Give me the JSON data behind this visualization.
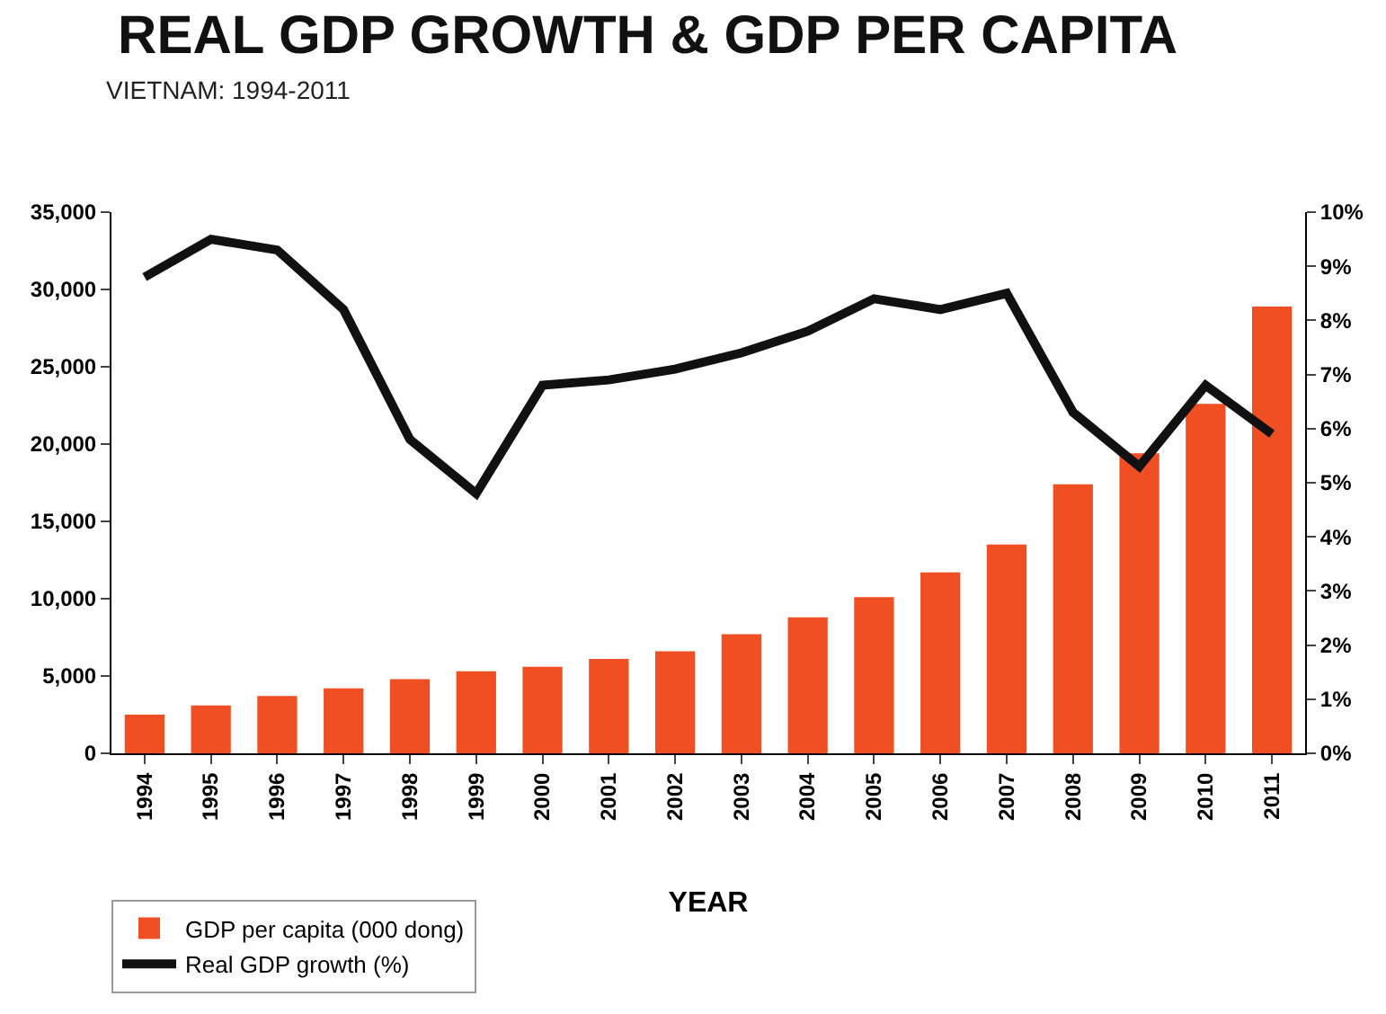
{
  "chart_data": {
    "type": "bar",
    "title": "REAL GDP GROWTH & GDP PER CAPITA",
    "subtitle": "VIETNAM: 1994-2011",
    "xlabel": "YEAR",
    "categories": [
      "1994",
      "1995",
      "1996",
      "1997",
      "1998",
      "1999",
      "2000",
      "2001",
      "2002",
      "2003",
      "2004",
      "2005",
      "2006",
      "2007",
      "2008",
      "2009",
      "2010",
      "2011"
    ],
    "series": [
      {
        "name": "GDP per capita (000 dong)",
        "color": "#f04e23",
        "values": [
          2500,
          3100,
          3700,
          4200,
          4800,
          5300,
          5600,
          6100,
          6600,
          7700,
          8800,
          10100,
          11700,
          13500,
          17400,
          19400,
          22600,
          28900
        ]
      },
      {
        "name": "Real GDP growth (%)",
        "type": "line",
        "axis": "y2",
        "color": "#111111",
        "values": [
          8.8,
          9.5,
          9.3,
          8.2,
          5.8,
          4.8,
          6.8,
          6.9,
          7.1,
          7.4,
          7.8,
          8.4,
          8.2,
          8.5,
          6.3,
          5.3,
          6.8,
          5.9
        ]
      }
    ],
    "ylim": [
      0,
      35000
    ],
    "yticks": [
      {
        "value": 0,
        "label": "0"
      },
      {
        "value": 5000,
        "label": "5,000"
      },
      {
        "value": 10000,
        "label": "10,000"
      },
      {
        "value": 15000,
        "label": "15,000"
      },
      {
        "value": 20000,
        "label": "20,000"
      },
      {
        "value": 25000,
        "label": "25,000"
      },
      {
        "value": 30000,
        "label": "30,000"
      },
      {
        "value": 35000,
        "label": "35,000"
      }
    ],
    "y2lim": [
      0,
      10
    ],
    "y2ticks": [
      {
        "value": 0,
        "label": "0%"
      },
      {
        "value": 1,
        "label": "1%"
      },
      {
        "value": 2,
        "label": "2%"
      },
      {
        "value": 3,
        "label": "3%"
      },
      {
        "value": 4,
        "label": "4%"
      },
      {
        "value": 5,
        "label": "5%"
      },
      {
        "value": 6,
        "label": "6%"
      },
      {
        "value": 7,
        "label": "7%"
      },
      {
        "value": 8,
        "label": "8%"
      },
      {
        "value": 9,
        "label": "9%"
      },
      {
        "value": 10,
        "label": "10%"
      }
    ],
    "grid": false,
    "legend": "bottom left",
    "marker": "none",
    "line_style": "solid"
  }
}
